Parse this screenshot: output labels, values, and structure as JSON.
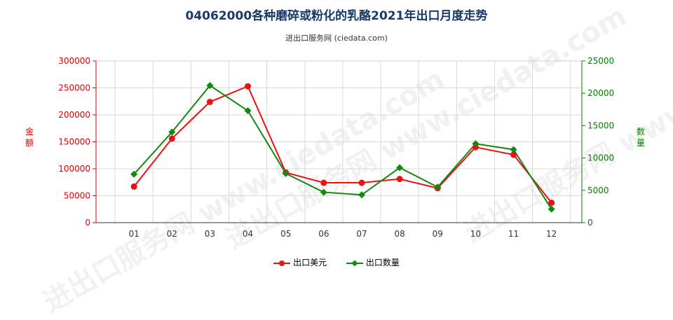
{
  "title": "04062000各种磨碎或粉化的乳酪2021年出口月度走势",
  "subtitle": "进出口服务网 (ciedata.com)",
  "watermark": "进出口服务网 www.ciedata.com",
  "colors": {
    "amount": "#ee1111",
    "quantity": "#118811",
    "title": "#1a3a6b"
  },
  "chart_data": {
    "type": "line",
    "categories": [
      "01",
      "02",
      "03",
      "04",
      "05",
      "06",
      "07",
      "08",
      "09",
      "10",
      "11",
      "12"
    ],
    "series": [
      {
        "name": "出口美元",
        "axis": "left",
        "marker": "circle",
        "values": [
          67000,
          156000,
          224000,
          253000,
          93000,
          74000,
          74000,
          81000,
          64000,
          140000,
          126000,
          37000
        ]
      },
      {
        "name": "出口数量",
        "axis": "right",
        "marker": "diamond",
        "values": [
          7500,
          14000,
          21200,
          17300,
          7600,
          4700,
          4300,
          8500,
          5500,
          12200,
          11300,
          2100
        ]
      }
    ],
    "ylabel_left": "金额",
    "ylabel_right": "数量",
    "ylim_left": [
      0,
      300000
    ],
    "ylim_right": [
      0,
      25000
    ],
    "yticks_left": [
      "0",
      "50000",
      "100000",
      "150000",
      "200000",
      "250000",
      "300000"
    ],
    "yticks_right": [
      "0",
      "5000",
      "10000",
      "15000",
      "20000",
      "25000"
    ],
    "grid": true,
    "legend": "bottom-center"
  }
}
